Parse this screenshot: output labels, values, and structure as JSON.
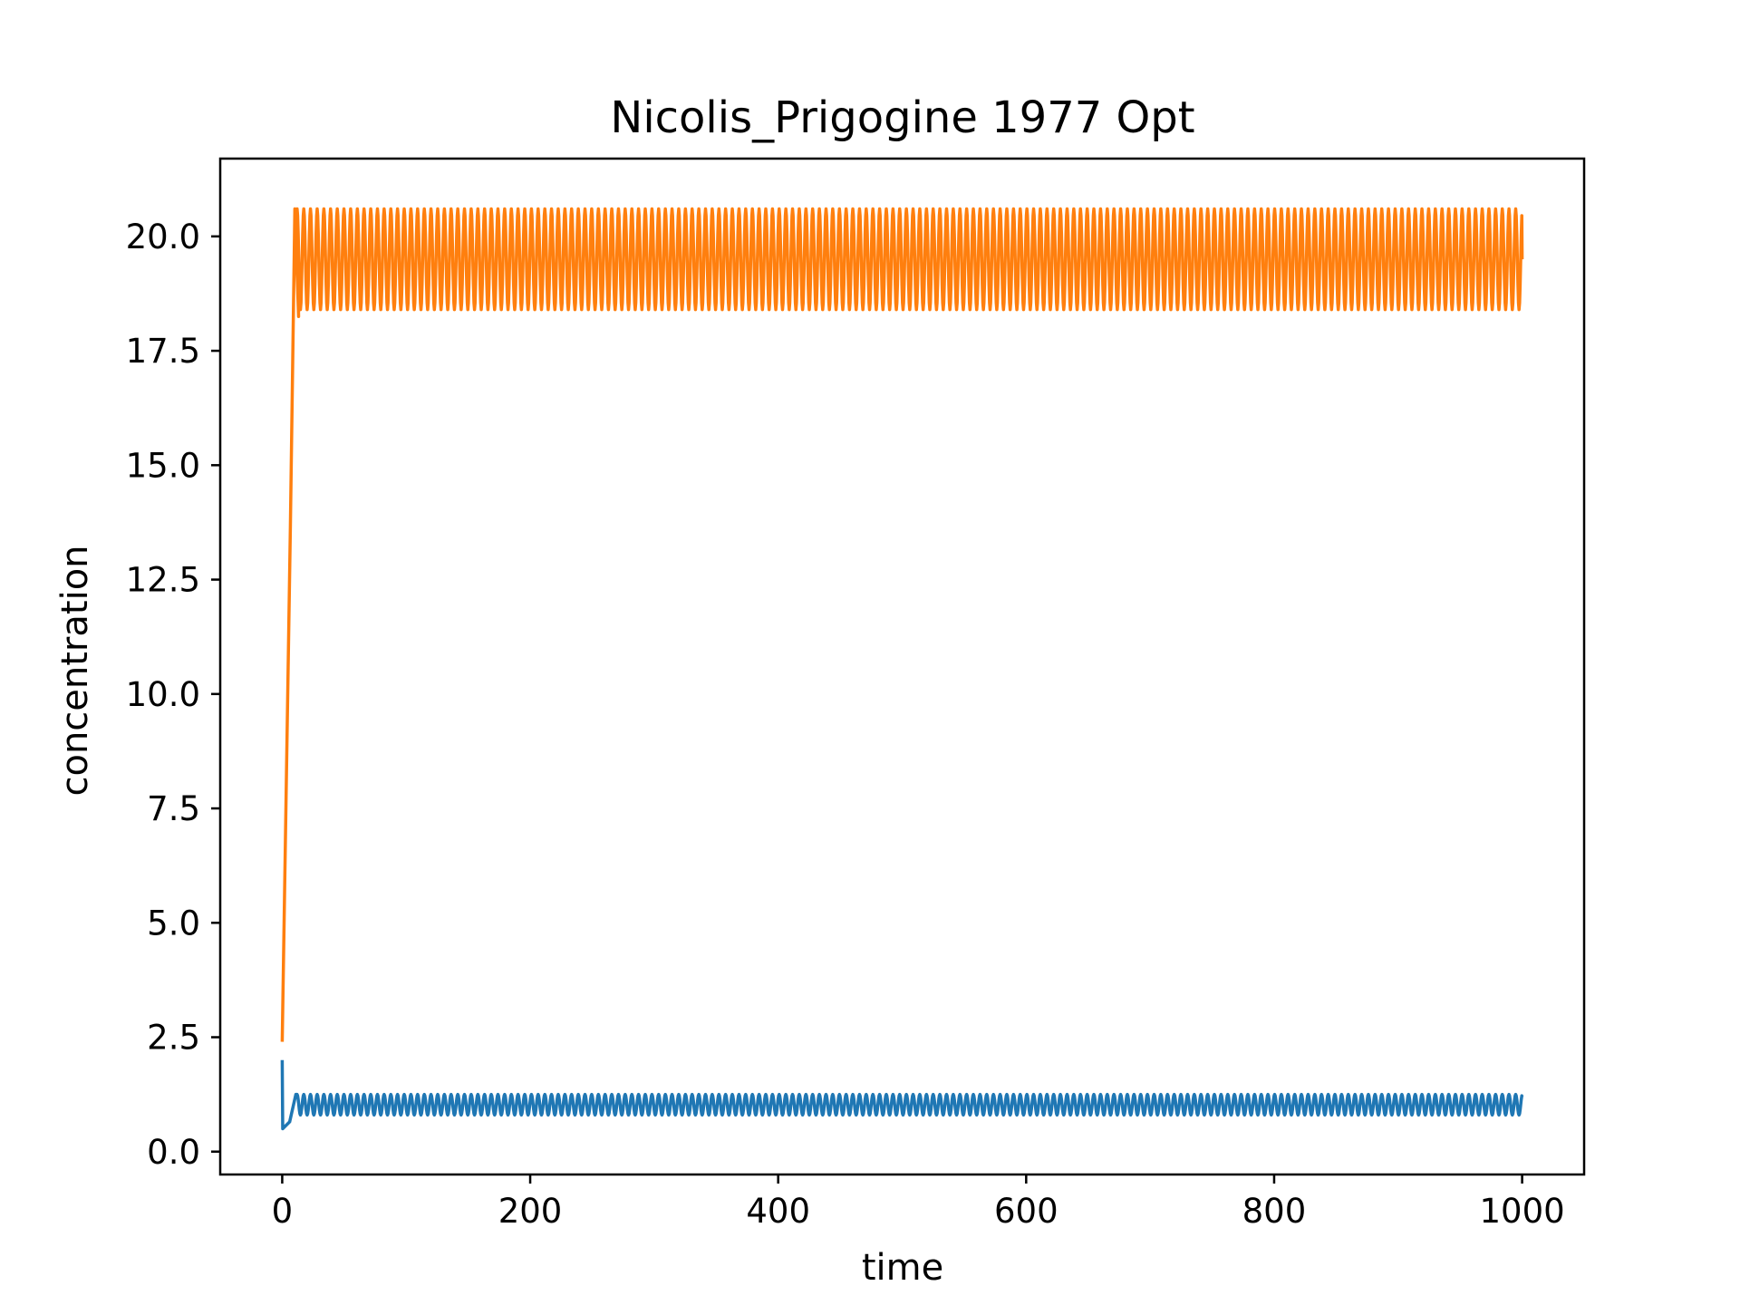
{
  "chart_data": {
    "type": "line",
    "title": "Nicolis_Prigogine 1977 Opt",
    "xlabel": "time",
    "ylabel": "concentration",
    "xlim": [
      -50,
      1050
    ],
    "ylim": [
      -0.5,
      21.7
    ],
    "x_ticks": [
      0,
      200,
      400,
      600,
      800,
      1000
    ],
    "x_tick_labels": [
      "0",
      "200",
      "400",
      "600",
      "800",
      "1000"
    ],
    "y_ticks": [
      0.0,
      2.5,
      5.0,
      7.5,
      10.0,
      12.5,
      15.0,
      17.5,
      20.0
    ],
    "y_tick_labels": [
      "0.0",
      "2.5",
      "5.0",
      "7.5",
      "10.0",
      "12.5",
      "15.0",
      "17.5",
      "20.0"
    ],
    "grid": false,
    "legend": "none",
    "series": [
      {
        "color": "#1f77b4",
        "initial": 2.0,
        "transient_min": 0.5,
        "oscillation": {
          "min": 0.8,
          "max": 1.25,
          "period": 5.4,
          "start": 12,
          "end": 1000,
          "final": 1.2
        }
      },
      {
        "color": "#ff7f0e",
        "initial": 2.4,
        "rise_end_time": 12,
        "transient_min": 18.25,
        "oscillation": {
          "min": 18.4,
          "max": 20.6,
          "period": 5.4,
          "start": 12,
          "end": 1000,
          "final": 19.5
        }
      }
    ]
  }
}
